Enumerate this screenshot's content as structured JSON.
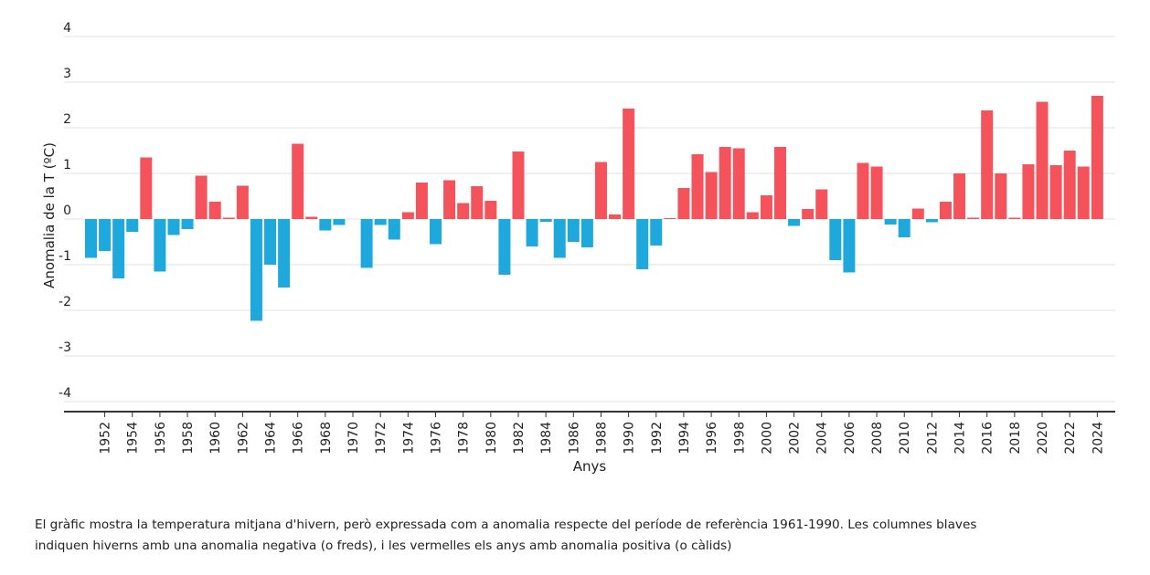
{
  "chart_data": {
    "type": "bar",
    "title": "",
    "xlabel": "Anys",
    "ylabel": "Anomalia de la T (ºC)",
    "ylim": [
      -4.2,
      4
    ],
    "yticks": [
      4,
      3,
      2,
      1,
      0,
      -1,
      -2,
      -3,
      -4
    ],
    "x_tick_labels": [
      "1952",
      "1954",
      "1956",
      "1958",
      "1960",
      "1962",
      "1964",
      "1966",
      "1968",
      "1970",
      "1972",
      "1974",
      "1976",
      "1978",
      "1980",
      "1982",
      "1984",
      "1986",
      "1988",
      "1990",
      "1992",
      "1994",
      "1996",
      "1998",
      "2000",
      "2002",
      "2004",
      "2006",
      "2008",
      "2010",
      "2012",
      "2014",
      "2016",
      "2018",
      "2020",
      "2022",
      "2024"
    ],
    "colors": {
      "positive": "#f5535b",
      "negative": "#1ea8dc",
      "grid": "#e3e3e3",
      "axis": "#333333"
    },
    "years": [
      1951,
      1952,
      1953,
      1954,
      1955,
      1956,
      1957,
      1958,
      1959,
      1960,
      1961,
      1962,
      1963,
      1964,
      1965,
      1966,
      1967,
      1968,
      1969,
      1970,
      1971,
      1972,
      1973,
      1974,
      1975,
      1976,
      1977,
      1978,
      1979,
      1980,
      1981,
      1982,
      1983,
      1984,
      1985,
      1986,
      1987,
      1988,
      1989,
      1990,
      1991,
      1992,
      1993,
      1994,
      1995,
      1996,
      1997,
      1998,
      1999,
      2000,
      2001,
      2002,
      2003,
      2004,
      2005,
      2006,
      2007,
      2008,
      2009,
      2010,
      2011,
      2012,
      2013,
      2014,
      2015,
      2016,
      2017,
      2018,
      2019,
      2020,
      2021,
      2022,
      2023,
      2024
    ],
    "values": [
      -0.85,
      -0.7,
      -1.3,
      -0.28,
      1.35,
      -1.15,
      -0.35,
      -0.22,
      0.95,
      0.38,
      0.03,
      0.73,
      -2.23,
      -1.0,
      -1.5,
      1.65,
      0.05,
      -0.25,
      -0.13,
      0.0,
      -1.07,
      -0.13,
      -0.45,
      0.15,
      0.8,
      -0.55,
      0.85,
      0.35,
      0.72,
      0.4,
      -1.22,
      1.48,
      -0.6,
      -0.06,
      -0.85,
      -0.5,
      -0.62,
      1.25,
      0.1,
      2.42,
      -1.1,
      -0.58,
      0.02,
      0.68,
      1.42,
      1.03,
      1.58,
      1.55,
      0.15,
      0.52,
      1.58,
      -0.15,
      0.22,
      0.65,
      -0.9,
      -1.17,
      1.23,
      1.15,
      -0.12,
      -0.4,
      0.23,
      -0.07,
      0.38,
      1.0,
      0.03,
      2.38,
      1.0,
      0.03,
      1.2,
      2.57,
      1.18,
      1.5,
      1.15,
      2.7
    ]
  },
  "caption": {
    "line1": "El gràfic mostra la temperatura mitjana d'hivern, però expressada com a anomalia respecte del període de referència 1961-1990. Les columnes blaves",
    "line2": "indiquen hiverns amb una anomalia negativa (o freds), i les vermelles els anys amb anomalia positiva (o càlids)"
  }
}
